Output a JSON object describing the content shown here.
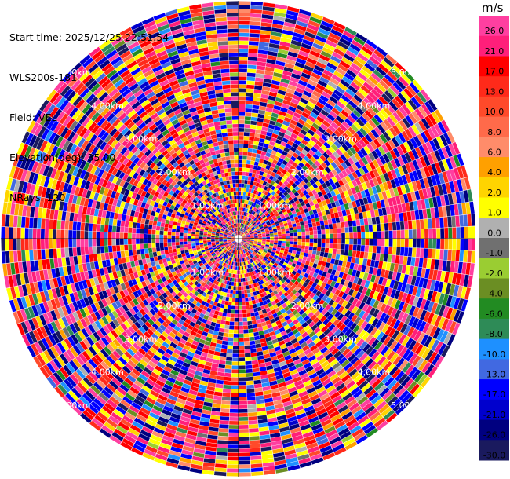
{
  "header": {
    "start_time": "Start time: 2025/12/25 22:51:54",
    "instrument": "WLS200s-181",
    "field": "Field: VEL",
    "elevation": "Elevation(deg): 35.00",
    "nrays": "NRays: 120"
  },
  "chart_data": {
    "type": "polar-ppi",
    "field": "VEL",
    "nrays": 120,
    "elevation_deg": 35.0,
    "range_ring_labels": [
      "1.00km",
      "2.00km",
      "3.00km",
      "4.00km",
      "5.00km"
    ],
    "colorbar": {
      "unit": "m/s",
      "tick_labels": [
        "26.0",
        "21.0",
        "17.0",
        "13.0",
        "10.0",
        "8.0",
        "6.0",
        "4.0",
        "2.0",
        "1.0",
        "0.0",
        "-1.0",
        "-2.0",
        "-4.0",
        "-6.0",
        "-8.0",
        "-10.0",
        "-13.0",
        "-17.0",
        "-21.0",
        "-26.0",
        "-30.0"
      ],
      "colors": [
        "#ff3fa0",
        "#ff1f7a",
        "#ff0000",
        "#ff2a1a",
        "#ff4a2a",
        "#ff6a4a",
        "#ff8c6a",
        "#ffa000",
        "#ffd400",
        "#ffff00",
        "#b0b0b0",
        "#707070",
        "#9acd32",
        "#6b8e23",
        "#228b22",
        "#2e8b57",
        "#1e90ff",
        "#4169e1",
        "#0000ff",
        "#0000cd",
        "#000080",
        "#1a1a5e"
      ]
    }
  }
}
